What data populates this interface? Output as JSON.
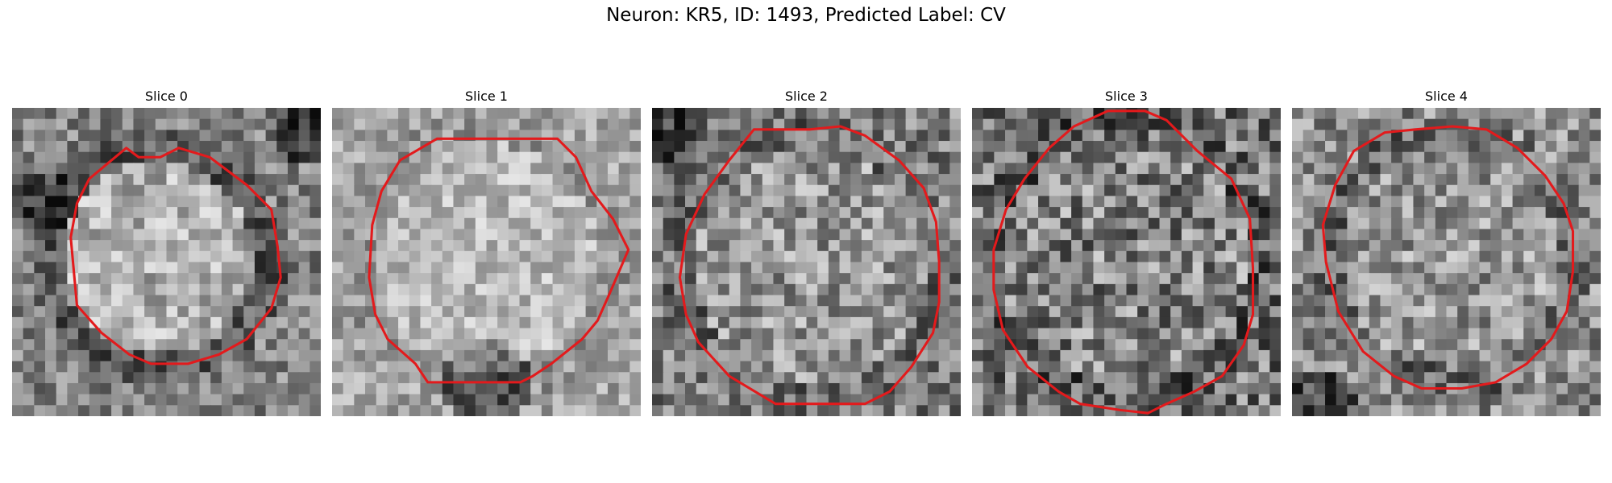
{
  "figure": {
    "title": "Neuron: KR5, ID: 1493, Predicted Label: CV",
    "contour_color": "#e31a1c",
    "panels": [
      {
        "title": "Slice 0",
        "contour": [
          [
            0.37,
            0.13
          ],
          [
            0.41,
            0.16
          ],
          [
            0.48,
            0.16
          ],
          [
            0.54,
            0.13
          ],
          [
            0.64,
            0.16
          ],
          [
            0.76,
            0.25
          ],
          [
            0.84,
            0.33
          ],
          [
            0.86,
            0.45
          ],
          [
            0.87,
            0.55
          ],
          [
            0.84,
            0.65
          ],
          [
            0.76,
            0.75
          ],
          [
            0.67,
            0.8
          ],
          [
            0.57,
            0.83
          ],
          [
            0.45,
            0.83
          ],
          [
            0.38,
            0.8
          ],
          [
            0.29,
            0.73
          ],
          [
            0.21,
            0.64
          ],
          [
            0.19,
            0.42
          ],
          [
            0.21,
            0.31
          ],
          [
            0.25,
            0.23
          ]
        ]
      },
      {
        "title": "Slice 1",
        "contour": [
          [
            0.34,
            0.1
          ],
          [
            0.73,
            0.1
          ],
          [
            0.79,
            0.16
          ],
          [
            0.84,
            0.27
          ],
          [
            0.91,
            0.36
          ],
          [
            0.96,
            0.46
          ],
          [
            0.93,
            0.53
          ],
          [
            0.9,
            0.6
          ],
          [
            0.86,
            0.69
          ],
          [
            0.81,
            0.75
          ],
          [
            0.71,
            0.83
          ],
          [
            0.65,
            0.87
          ],
          [
            0.61,
            0.89
          ],
          [
            0.31,
            0.89
          ],
          [
            0.27,
            0.83
          ],
          [
            0.18,
            0.75
          ],
          [
            0.14,
            0.67
          ],
          [
            0.12,
            0.55
          ],
          [
            0.13,
            0.38
          ],
          [
            0.16,
            0.27
          ],
          [
            0.22,
            0.17
          ]
        ]
      },
      {
        "title": "Slice 2",
        "contour": [
          [
            0.33,
            0.07
          ],
          [
            0.51,
            0.07
          ],
          [
            0.61,
            0.06
          ],
          [
            0.69,
            0.09
          ],
          [
            0.8,
            0.17
          ],
          [
            0.88,
            0.26
          ],
          [
            0.92,
            0.37
          ],
          [
            0.93,
            0.5
          ],
          [
            0.93,
            0.63
          ],
          [
            0.91,
            0.73
          ],
          [
            0.84,
            0.84
          ],
          [
            0.77,
            0.92
          ],
          [
            0.69,
            0.96
          ],
          [
            0.4,
            0.96
          ],
          [
            0.35,
            0.93
          ],
          [
            0.25,
            0.87
          ],
          [
            0.15,
            0.76
          ],
          [
            0.11,
            0.67
          ],
          [
            0.09,
            0.55
          ],
          [
            0.11,
            0.41
          ],
          [
            0.17,
            0.28
          ],
          [
            0.25,
            0.17
          ]
        ]
      },
      {
        "title": "Slice 3",
        "contour": [
          [
            0.44,
            0.01
          ],
          [
            0.56,
            0.01
          ],
          [
            0.63,
            0.04
          ],
          [
            0.73,
            0.14
          ],
          [
            0.84,
            0.23
          ],
          [
            0.9,
            0.36
          ],
          [
            0.91,
            0.52
          ],
          [
            0.91,
            0.67
          ],
          [
            0.88,
            0.77
          ],
          [
            0.81,
            0.87
          ],
          [
            0.72,
            0.92
          ],
          [
            0.63,
            0.96
          ],
          [
            0.57,
            0.99
          ],
          [
            0.48,
            0.98
          ],
          [
            0.35,
            0.96
          ],
          [
            0.28,
            0.92
          ],
          [
            0.18,
            0.84
          ],
          [
            0.1,
            0.72
          ],
          [
            0.07,
            0.59
          ],
          [
            0.07,
            0.46
          ],
          [
            0.11,
            0.33
          ],
          [
            0.17,
            0.23
          ],
          [
            0.25,
            0.13
          ],
          [
            0.33,
            0.06
          ]
        ]
      },
      {
        "title": "Slice 4",
        "contour": [
          [
            0.4,
            0.07
          ],
          [
            0.52,
            0.06
          ],
          [
            0.63,
            0.07
          ],
          [
            0.73,
            0.13
          ],
          [
            0.82,
            0.22
          ],
          [
            0.88,
            0.31
          ],
          [
            0.91,
            0.4
          ],
          [
            0.91,
            0.53
          ],
          [
            0.89,
            0.66
          ],
          [
            0.84,
            0.75
          ],
          [
            0.76,
            0.83
          ],
          [
            0.66,
            0.89
          ],
          [
            0.55,
            0.91
          ],
          [
            0.42,
            0.91
          ],
          [
            0.33,
            0.87
          ],
          [
            0.23,
            0.79
          ],
          [
            0.15,
            0.66
          ],
          [
            0.11,
            0.5
          ],
          [
            0.1,
            0.38
          ],
          [
            0.14,
            0.25
          ],
          [
            0.2,
            0.14
          ],
          [
            0.3,
            0.08
          ]
        ]
      }
    ]
  }
}
